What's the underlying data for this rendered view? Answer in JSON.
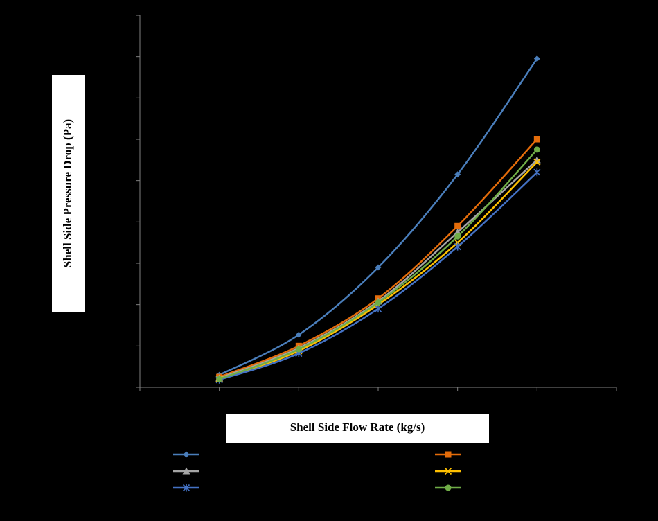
{
  "chart_data": {
    "type": "line",
    "title": "",
    "xlabel": "Shell Side Flow Rate (kg/s)",
    "ylabel": "Shell Side Pressure Drop (Pa)",
    "x": [
      1,
      2,
      3,
      4,
      5
    ],
    "xlim": [
      0,
      6
    ],
    "ylim": [
      0,
      9
    ],
    "grid": false,
    "legend_position": "bottom",
    "tick_labels_visible": false,
    "series": [
      {
        "marker": "diamond",
        "color": "#4a7ebb",
        "values": [
          0.3,
          1.27,
          2.9,
          5.15,
          7.95
        ]
      },
      {
        "marker": "square",
        "color": "#e46c0a",
        "values": [
          0.25,
          1.0,
          2.15,
          3.9,
          6.0
        ]
      },
      {
        "marker": "triangle",
        "color": "#a5a5a5",
        "values": [
          0.22,
          0.95,
          2.08,
          3.75,
          5.5
        ]
      },
      {
        "marker": "x",
        "color": "#ffc000",
        "values": [
          0.2,
          0.88,
          2.0,
          3.5,
          5.45
        ]
      },
      {
        "marker": "star",
        "color": "#4472c4",
        "values": [
          0.18,
          0.82,
          1.9,
          3.4,
          5.2
        ]
      },
      {
        "marker": "circle",
        "color": "#70ad47",
        "values": [
          0.2,
          0.92,
          2.05,
          3.65,
          5.75
        ]
      }
    ]
  }
}
